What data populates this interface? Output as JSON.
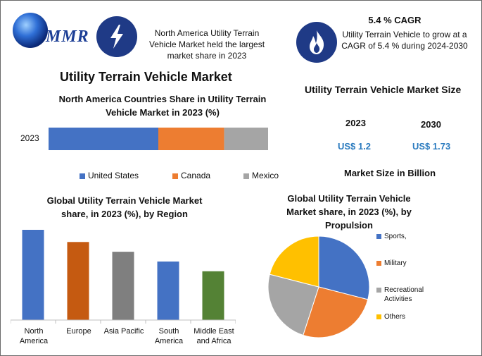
{
  "header": {
    "logo_text": "MMR",
    "na_text": "North America Utility Terrain Vehicle Market held the largest market share in 2023",
    "cagr_title": "5.4 % CAGR",
    "cagr_text": "Utility Terrain Vehicle to grow at a CAGR of 5.4 % during 2024-2030",
    "icons": [
      "lightning-icon",
      "flame-icon"
    ]
  },
  "main_title": "Utility Terrain Vehicle Market",
  "market_size": {
    "title": "Utility Terrain Vehicle Market Size",
    "years": [
      "2023",
      "2030"
    ],
    "values": [
      "US$ 1.2",
      "US$ 1.73"
    ],
    "unit_label": "Market Size in Billion"
  },
  "colors": {
    "united_states": "#4472c4",
    "canada": "#ed7d31",
    "mexico": "#a5a5a5",
    "north_america": "#4472c4",
    "europe": "#c55a11",
    "asia_pacific": "#7f7f7f",
    "south_america": "#4472c4",
    "mea": "#548235",
    "sports": "#4472c4",
    "military": "#ed7d31",
    "recreational": "#a5a5a5",
    "others": "#ffc000",
    "icon_bg": "#1f3a86",
    "value_blue": "#2b7bbf"
  },
  "chart_data": [
    {
      "type": "bar",
      "orientation": "horizontal-stacked",
      "title": "North America Countries Share in Utility Terrain Vehicle Market in 2023 (%)",
      "categories": [
        "2023"
      ],
      "series": [
        {
          "name": "United States",
          "values": [
            50
          ]
        },
        {
          "name": "Canada",
          "values": [
            30
          ]
        },
        {
          "name": "Mexico",
          "values": [
            20
          ]
        }
      ],
      "legend": "bottom"
    },
    {
      "type": "bar",
      "title": "Global Utility Terrain Vehicle  Market share, in 2023 (%), by Region",
      "categories": [
        "North America",
        "Europe",
        "Asia Pacific",
        "South America",
        "Middle East and Africa"
      ],
      "values": [
        37,
        32,
        28,
        24,
        20
      ],
      "grid": false,
      "legend": "none"
    },
    {
      "type": "pie",
      "title": "Global Utility Terrain Vehicle Market share, in 2023 (%), by Propulsion",
      "labels": [
        "Sports,",
        "Military",
        "Recreational Activities",
        "Others"
      ],
      "values": [
        29,
        26,
        24,
        21
      ],
      "legend": "right"
    }
  ]
}
